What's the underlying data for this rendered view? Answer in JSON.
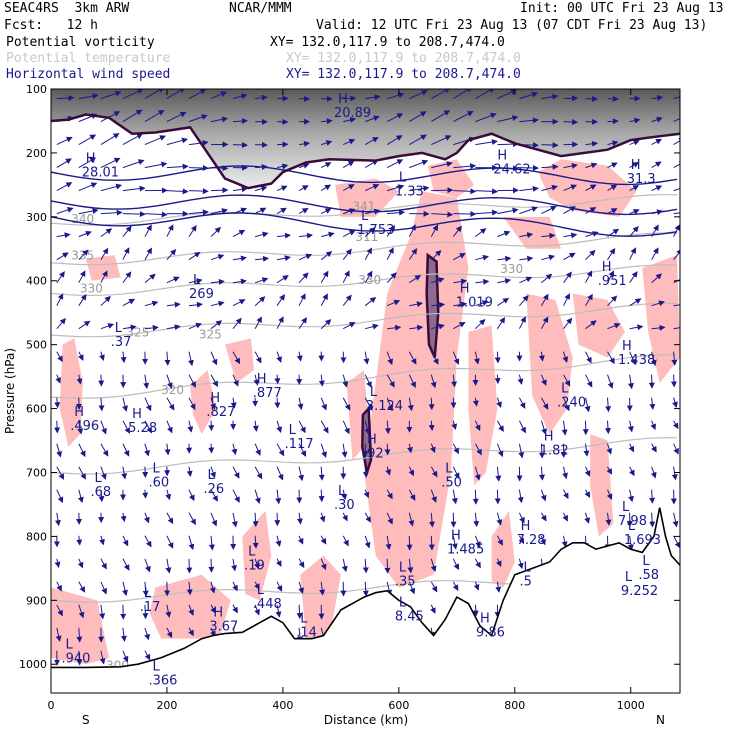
{
  "header": {
    "model": "SEAC4RS  3km ARW",
    "org": "NCAR/MMM",
    "init": "Init: 00 UTC Fri 23 Aug 13",
    "fcst": "Fcst:   12 h",
    "valid": "Valid: 12 UTC Fri 23 Aug 13 (07 CDT Fri 23 Aug 13)",
    "fields": [
      {
        "name": "Potential vorticity",
        "xy": "XY= 132.0,117.9 to 208.7,474.0",
        "color": "#000000"
      },
      {
        "name": "Potential temperature",
        "xy": "XY= 132.0,117.9 to 208.7,474.0",
        "color": "#c8c8c8"
      },
      {
        "name": "Horizontal wind speed",
        "xy": "XY= 132.0,117.9 to 208.7,474.0",
        "color": "#1a1a8c"
      }
    ]
  },
  "chart_data": {
    "type": "cross-section",
    "xlabel": "Distance (km)",
    "ylabel": "Pressure (hPa)",
    "xlim": [
      0,
      1085
    ],
    "ylim": [
      1045,
      100
    ],
    "x_ticks": [
      "0",
      "200",
      "400",
      "600",
      "800",
      "1000"
    ],
    "y_ticks": [
      "100",
      "200",
      "300",
      "400",
      "500",
      "600",
      "700",
      "800",
      "900",
      "1000"
    ],
    "x_tick_values": [
      0,
      200,
      400,
      600,
      800,
      1000
    ],
    "y_tick_values": [
      100,
      200,
      300,
      400,
      500,
      600,
      700,
      800,
      900,
      1000
    ],
    "end_labels": {
      "left": "S",
      "right": "N"
    },
    "colors": {
      "pv_fill": "#ffbcbc",
      "pv_contour": "#3a0a3a",
      "theta": "#bdbdbd",
      "wind": "#1a1a8c",
      "terrain": "#000000"
    },
    "terrain": [
      [
        0,
        1005
      ],
      [
        60,
        1005
      ],
      [
        120,
        1004
      ],
      [
        150,
        1000
      ],
      [
        190,
        990
      ],
      [
        230,
        975
      ],
      [
        260,
        960
      ],
      [
        280,
        955
      ],
      [
        300,
        952
      ],
      [
        330,
        950
      ],
      [
        360,
        935
      ],
      [
        380,
        925
      ],
      [
        400,
        935
      ],
      [
        420,
        960
      ],
      [
        450,
        960
      ],
      [
        470,
        955
      ],
      [
        500,
        915
      ],
      [
        540,
        895
      ],
      [
        560,
        888
      ],
      [
        580,
        885
      ],
      [
        600,
        900
      ],
      [
        620,
        910
      ],
      [
        640,
        935
      ],
      [
        660,
        955
      ],
      [
        680,
        930
      ],
      [
        700,
        895
      ],
      [
        720,
        905
      ],
      [
        740,
        940
      ],
      [
        760,
        955
      ],
      [
        780,
        900
      ],
      [
        800,
        860
      ],
      [
        830,
        850
      ],
      [
        860,
        840
      ],
      [
        880,
        820
      ],
      [
        900,
        810
      ],
      [
        920,
        810
      ],
      [
        940,
        820
      ],
      [
        960,
        815
      ],
      [
        980,
        810
      ],
      [
        1000,
        820
      ],
      [
        1020,
        825
      ],
      [
        1040,
        800
      ],
      [
        1050,
        755
      ],
      [
        1060,
        800
      ],
      [
        1070,
        830
      ],
      [
        1085,
        845
      ]
    ],
    "theta_labels": [
      {
        "text": "340",
        "x": 35,
        "p": 310
      },
      {
        "text": "335",
        "x": 35,
        "p": 367
      },
      {
        "text": "330",
        "x": 50,
        "p": 418
      },
      {
        "text": "330",
        "x": 530,
        "p": 405
      },
      {
        "text": "330",
        "x": 775,
        "p": 388
      },
      {
        "text": "325",
        "x": 130,
        "p": 487
      },
      {
        "text": "325",
        "x": 255,
        "p": 490
      },
      {
        "text": "320",
        "x": 190,
        "p": 577
      },
      {
        "text": "341",
        "x": 520,
        "p": 290
      },
      {
        "text": "311",
        "x": 525,
        "p": 338
      },
      {
        "text": "300",
        "x": 95,
        "p": 1008
      }
    ],
    "theta_levels": [
      {
        "p0": 310,
        "p1": 270
      },
      {
        "p0": 372,
        "p1": 330
      },
      {
        "p0": 420,
        "p1": 380
      },
      {
        "p0": 485,
        "p1": 440
      },
      {
        "p0": 582,
        "p1": 520
      },
      {
        "p0": 700,
        "p1": 650
      },
      {
        "p0": 900,
        "p1": 860
      }
    ],
    "pv_contour_values": [
      "20",
      "20",
      "20",
      "28.01",
      "20.89",
      "24.62",
      "1.33",
      "31.3"
    ],
    "extrema": [
      {
        "t": "H",
        "v": "28.01",
        "x": 60,
        "p": 215
      },
      {
        "t": "H",
        "v": "20.89",
        "x": 495,
        "p": 122
      },
      {
        "t": "H",
        "v": "24.62",
        "x": 770,
        "p": 210
      },
      {
        "t": "H",
        "v": "31.3",
        "x": 1000,
        "p": 225
      },
      {
        "t": "L",
        "v": "1.33",
        "x": 600,
        "p": 245
      },
      {
        "t": "L",
        "v": "1.753",
        "x": 535,
        "p": 305
      },
      {
        "t": "L",
        "v": "269",
        "x": 245,
        "p": 405
      },
      {
        "t": "H",
        "v": "1.019",
        "x": 705,
        "p": 418
      },
      {
        "t": "H",
        "v": ".951",
        "x": 950,
        "p": 385
      },
      {
        "t": "L",
        "v": ".37",
        "x": 110,
        "p": 480
      },
      {
        "t": "H",
        "v": "1.438",
        "x": 985,
        "p": 508
      },
      {
        "t": "H",
        "v": ".877",
        "x": 355,
        "p": 560
      },
      {
        "t": "L",
        "v": ".240",
        "x": 880,
        "p": 575
      },
      {
        "t": "H",
        "v": ".496",
        "x": 40,
        "p": 612
      },
      {
        "t": "H",
        "v": "5.28",
        "x": 140,
        "p": 615
      },
      {
        "t": "H",
        "v": ".827",
        "x": 275,
        "p": 590
      },
      {
        "t": "L",
        "v": "3.124",
        "x": 550,
        "p": 580
      },
      {
        "t": "L",
        "v": ".117",
        "x": 410,
        "p": 640
      },
      {
        "t": "H",
        "v": "1.82",
        "x": 850,
        "p": 650
      },
      {
        "t": "H",
        "v": ".92",
        "x": 545,
        "p": 655
      },
      {
        "t": "L",
        "v": ".60",
        "x": 175,
        "p": 700
      },
      {
        "t": "L",
        "v": ".26",
        "x": 270,
        "p": 710
      },
      {
        "t": "L",
        "v": ".68",
        "x": 75,
        "p": 715
      },
      {
        "t": "L",
        "v": ".50",
        "x": 680,
        "p": 700
      },
      {
        "t": "L",
        "v": ".30",
        "x": 495,
        "p": 735
      },
      {
        "t": "H",
        "v": "1.485",
        "x": 690,
        "p": 805
      },
      {
        "t": "H",
        "v": "7.28",
        "x": 810,
        "p": 790
      },
      {
        "t": "L",
        "v": "7.98",
        "x": 985,
        "p": 760
      },
      {
        "t": "L",
        "v": "1.693",
        "x": 995,
        "p": 790
      },
      {
        "t": "L",
        "v": ".19",
        "x": 340,
        "p": 830
      },
      {
        "t": "L",
        "v": ".35",
        "x": 600,
        "p": 855
      },
      {
        "t": "L",
        "v": ".5",
        "x": 815,
        "p": 855
      },
      {
        "t": "L",
        "v": ".58",
        "x": 1020,
        "p": 845
      },
      {
        "t": "L",
        "v": "9.252",
        "x": 990,
        "p": 870
      },
      {
        "t": "L",
        "v": ".448",
        "x": 355,
        "p": 890
      },
      {
        "t": "L",
        "v": ".17",
        "x": 160,
        "p": 895
      },
      {
        "t": "H",
        "v": "3.67",
        "x": 280,
        "p": 925
      },
      {
        "t": "L",
        "v": ".14",
        "x": 430,
        "p": 935
      },
      {
        "t": "L",
        "v": "8.45",
        "x": 600,
        "p": 910
      },
      {
        "t": "H",
        "v": "9.86",
        "x": 740,
        "p": 935
      },
      {
        "t": "L",
        "v": ".940",
        "x": 25,
        "p": 975
      },
      {
        "t": "L",
        "v": ".366",
        "x": 175,
        "p": 1010
      }
    ],
    "pv_positive_regions": [
      [
        [
          540,
          700
        ],
        [
          580,
          420
        ],
        [
          620,
          330
        ],
        [
          640,
          260
        ],
        [
          700,
          270
        ],
        [
          720,
          380
        ],
        [
          700,
          520
        ],
        [
          690,
          700
        ],
        [
          660,
          860
        ],
        [
          600,
          880
        ],
        [
          560,
          830
        ]
      ],
      [
        [
          490,
          250
        ],
        [
          560,
          240
        ],
        [
          600,
          260
        ],
        [
          560,
          300
        ],
        [
          500,
          300
        ]
      ],
      [
        [
          650,
          220
        ],
        [
          700,
          210
        ],
        [
          730,
          250
        ],
        [
          700,
          270
        ],
        [
          660,
          260
        ]
      ],
      [
        [
          840,
          230
        ],
        [
          880,
          210
        ],
        [
          960,
          220
        ],
        [
          1010,
          260
        ],
        [
          980,
          300
        ],
        [
          900,
          290
        ],
        [
          860,
          270
        ]
      ],
      [
        [
          780,
          300
        ],
        [
          860,
          300
        ],
        [
          880,
          350
        ],
        [
          820,
          350
        ]
      ],
      [
        [
          20,
          500
        ],
        [
          40,
          490
        ],
        [
          55,
          560
        ],
        [
          50,
          640
        ],
        [
          30,
          660
        ],
        [
          15,
          600
        ]
      ],
      [
        [
          60,
          365
        ],
        [
          110,
          360
        ],
        [
          120,
          395
        ],
        [
          70,
          400
        ]
      ],
      [
        [
          240,
          565
        ],
        [
          270,
          540
        ],
        [
          285,
          600
        ],
        [
          260,
          640
        ],
        [
          245,
          610
        ]
      ],
      [
        [
          300,
          500
        ],
        [
          345,
          490
        ],
        [
          350,
          540
        ],
        [
          320,
          560
        ]
      ],
      [
        [
          330,
          800
        ],
        [
          370,
          760
        ],
        [
          380,
          830
        ],
        [
          360,
          900
        ],
        [
          335,
          890
        ]
      ],
      [
        [
          180,
          880
        ],
        [
          260,
          860
        ],
        [
          310,
          900
        ],
        [
          290,
          960
        ],
        [
          190,
          960
        ],
        [
          170,
          920
        ]
      ],
      [
        [
          0,
          880
        ],
        [
          80,
          900
        ],
        [
          100,
          990
        ],
        [
          60,
          1000
        ],
        [
          0,
          990
        ]
      ],
      [
        [
          430,
          860
        ],
        [
          470,
          830
        ],
        [
          500,
          860
        ],
        [
          480,
          960
        ],
        [
          440,
          960
        ]
      ],
      [
        [
          510,
          560
        ],
        [
          540,
          540
        ],
        [
          550,
          650
        ],
        [
          520,
          680
        ]
      ],
      [
        [
          720,
          480
        ],
        [
          760,
          470
        ],
        [
          770,
          600
        ],
        [
          750,
          700
        ],
        [
          730,
          720
        ],
        [
          720,
          600
        ]
      ],
      [
        [
          760,
          800
        ],
        [
          790,
          760
        ],
        [
          800,
          840
        ],
        [
          780,
          880
        ],
        [
          760,
          870
        ]
      ],
      [
        [
          820,
          420
        ],
        [
          870,
          430
        ],
        [
          900,
          520
        ],
        [
          890,
          600
        ],
        [
          860,
          640
        ],
        [
          830,
          580
        ]
      ],
      [
        [
          900,
          420
        ],
        [
          960,
          430
        ],
        [
          990,
          480
        ],
        [
          960,
          520
        ],
        [
          910,
          500
        ]
      ],
      [
        [
          1020,
          380
        ],
        [
          1080,
          360
        ],
        [
          1085,
          520
        ],
        [
          1050,
          560
        ],
        [
          1030,
          480
        ]
      ],
      [
        [
          930,
          640
        ],
        [
          960,
          650
        ],
        [
          970,
          780
        ],
        [
          945,
          800
        ],
        [
          930,
          720
        ]
      ],
      [
        [
          600,
          560
        ],
        [
          640,
          540
        ],
        [
          650,
          640
        ],
        [
          620,
          700
        ],
        [
          600,
          650
        ]
      ]
    ],
    "pv_high_regions": [
      [
        [
          650,
          360
        ],
        [
          665,
          370
        ],
        [
          668,
          450
        ],
        [
          662,
          520
        ],
        [
          652,
          500
        ],
        [
          648,
          420
        ]
      ],
      [
        [
          538,
          610
        ],
        [
          548,
          600
        ],
        [
          552,
          680
        ],
        [
          545,
          700
        ],
        [
          537,
          660
        ]
      ],
      [
        [
          975,
          830
        ],
        [
          995,
          820
        ],
        [
          1005,
          880
        ],
        [
          985,
          890
        ]
      ],
      [
        [
          1030,
          850
        ],
        [
          1050,
          840
        ],
        [
          1055,
          880
        ],
        [
          1035,
          885
        ]
      ]
    ],
    "tropopause": [
      [
        0,
        150
      ],
      [
        30,
        148
      ],
      [
        60,
        140
      ],
      [
        100,
        145
      ],
      [
        140,
        170
      ],
      [
        180,
        168
      ],
      [
        240,
        160
      ],
      [
        300,
        240
      ],
      [
        340,
        255
      ],
      [
        380,
        248
      ],
      [
        400,
        230
      ],
      [
        440,
        215
      ],
      [
        480,
        210
      ],
      [
        560,
        212
      ],
      [
        600,
        205
      ],
      [
        640,
        200
      ],
      [
        680,
        210
      ],
      [
        700,
        200
      ],
      [
        720,
        180
      ],
      [
        760,
        170
      ],
      [
        800,
        185
      ],
      [
        880,
        205
      ],
      [
        960,
        195
      ],
      [
        1000,
        180
      ],
      [
        1040,
        175
      ],
      [
        1085,
        170
      ]
    ]
  }
}
